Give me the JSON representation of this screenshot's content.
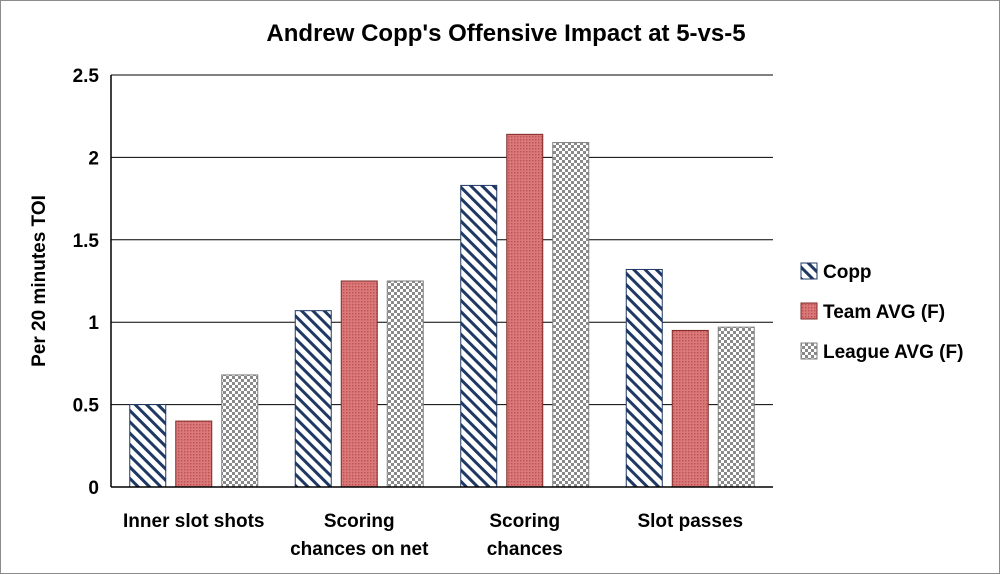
{
  "chart_data": {
    "type": "bar",
    "title": "Andrew Copp's Offensive Impact at 5-vs-5",
    "ylabel": "Per 20 minutes TOI",
    "xlabel": "",
    "ylim": [
      0,
      2.5
    ],
    "yticks": [
      "0",
      "0.5",
      "1",
      "1.5",
      "2",
      "2.5"
    ],
    "ytick_values": [
      0,
      0.5,
      1,
      1.5,
      2,
      2.5
    ],
    "grid": true,
    "legend_position": "right",
    "categories": [
      [
        "Inner slot shots"
      ],
      [
        "Scoring",
        "chances on net"
      ],
      [
        "Scoring",
        "chances"
      ],
      [
        "Slot passes"
      ]
    ],
    "series": [
      {
        "name": "Copp",
        "values": [
          0.5,
          1.07,
          1.83,
          1.32
        ],
        "color": "#1f3864",
        "pattern": "diagonal-stripes"
      },
      {
        "name": "Team AVG (F)",
        "values": [
          0.4,
          1.25,
          2.14,
          0.95
        ],
        "color": "#c0504d",
        "pattern": "dots"
      },
      {
        "name": "League AVG (F)",
        "values": [
          0.68,
          1.25,
          2.09,
          0.97
        ],
        "color": "#808080",
        "pattern": "checker"
      }
    ]
  }
}
